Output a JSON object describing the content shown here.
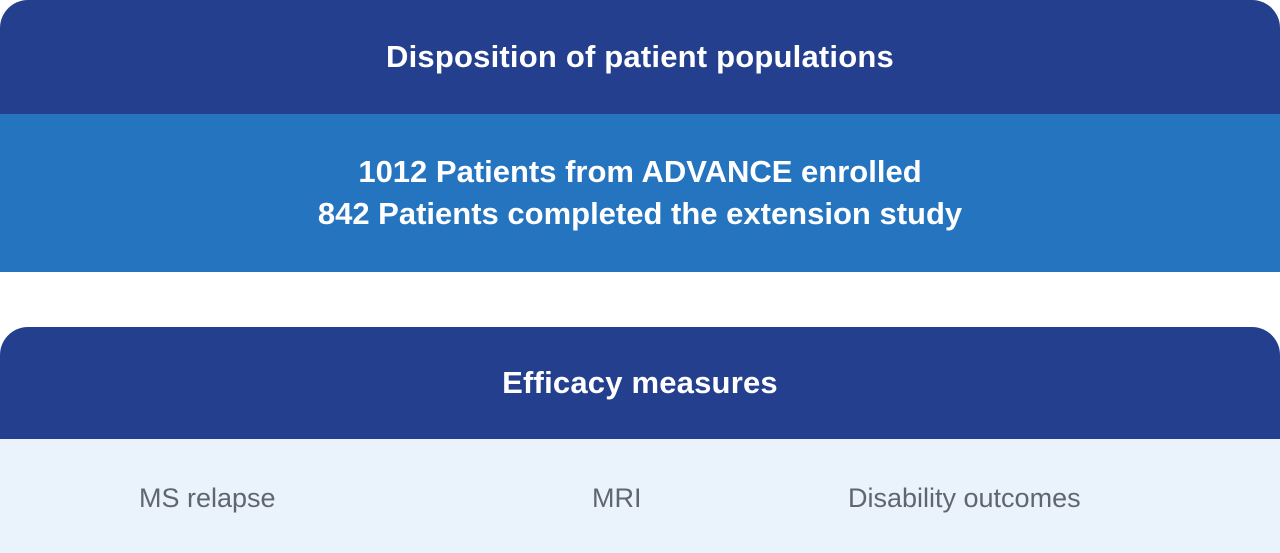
{
  "disposition": {
    "title": "Disposition of patient populations",
    "lines": [
      "1012 Patients from ADVANCE enrolled",
      "842 Patients completed the extension study"
    ]
  },
  "efficacy": {
    "title": "Efficacy measures",
    "items": [
      "MS relapse",
      "MRI",
      "Disability outcomes"
    ]
  },
  "colors": {
    "header_navy": "#253f8f",
    "stats_blue": "#2574bf",
    "measures_bg": "#eaf2fb",
    "measures_text": "#5f6670"
  }
}
